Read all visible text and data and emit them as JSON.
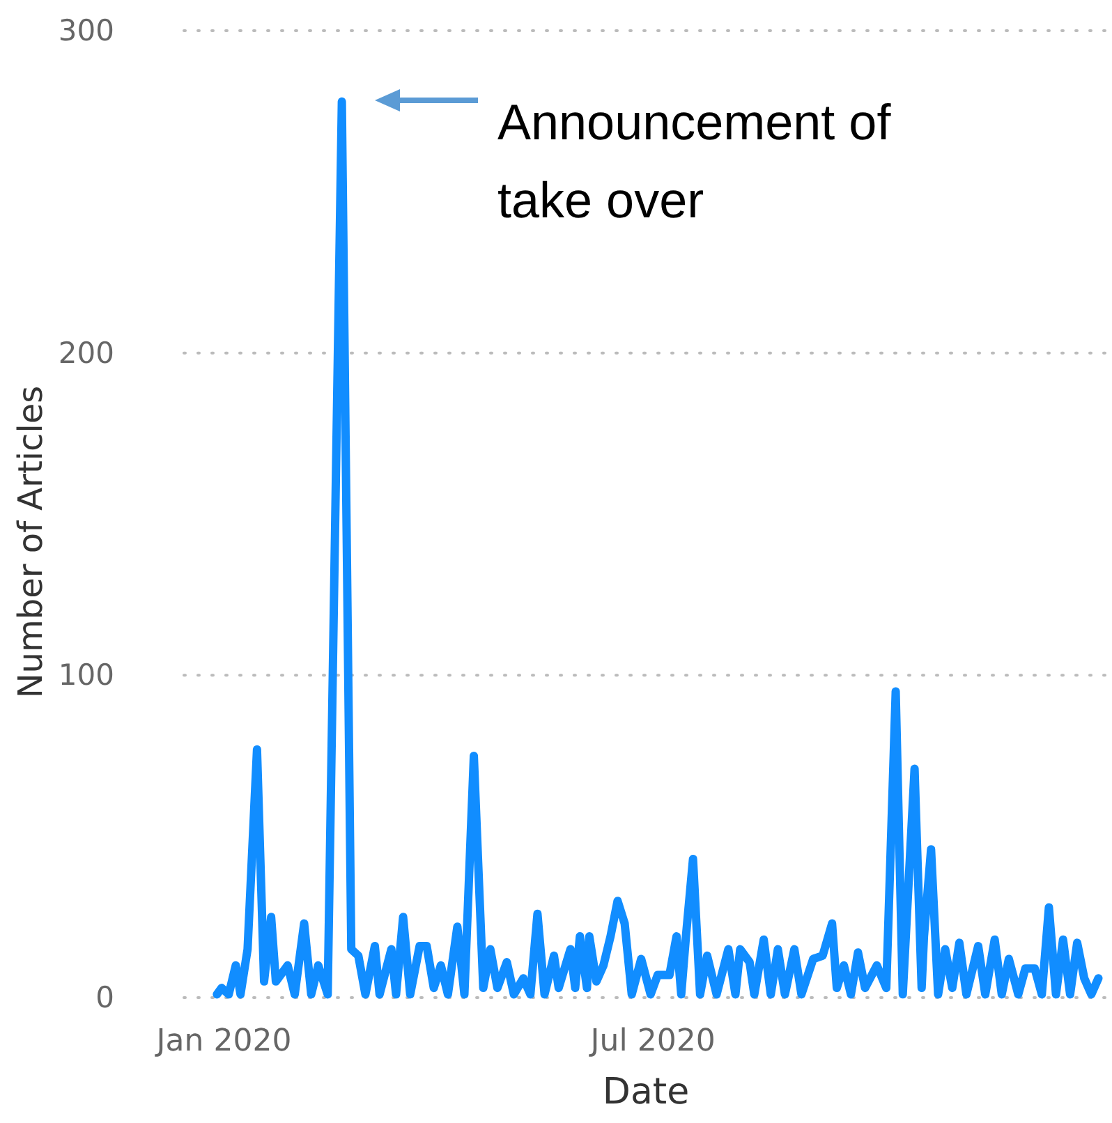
{
  "chart_data": {
    "type": "line",
    "xlabel": "Date",
    "ylabel": "Number of Articles",
    "xlim": [
      "2019-12-15",
      "2021-01-10"
    ],
    "xticks": [
      {
        "value": "2020-01-01",
        "label": "Jan 2020"
      },
      {
        "value": "2020-07-01",
        "label": "Jul 2020"
      }
    ],
    "ylim": [
      0,
      300
    ],
    "yticks": [
      0,
      100,
      200,
      300
    ],
    "grid": "y",
    "line_style": "solid",
    "marker": "none",
    "annotations": [
      "Announcement of take over"
    ],
    "series": [
      {
        "color": "#118dff",
        "x": [
          "2019-12-29",
          "2019-12-31",
          "2020-01-03",
          "2020-01-06",
          "2020-01-08",
          "2020-01-11",
          "2020-01-15",
          "2020-01-18",
          "2020-01-21",
          "2020-01-23",
          "2020-01-28",
          "2020-01-31",
          "2020-02-04",
          "2020-02-07",
          "2020-02-10",
          "2020-02-14",
          "2020-02-20",
          "2020-02-24",
          "2020-02-27",
          "2020-03-01",
          "2020-03-05",
          "2020-03-07",
          "2020-03-12",
          "2020-03-14",
          "2020-03-17",
          "2020-03-20",
          "2020-03-24",
          "2020-03-27",
          "2020-03-30",
          "2020-04-02",
          "2020-04-05",
          "2020-04-09",
          "2020-04-12",
          "2020-04-16",
          "2020-04-20",
          "2020-04-23",
          "2020-04-26",
          "2020-04-30",
          "2020-05-03",
          "2020-05-07",
          "2020-05-10",
          "2020-05-13",
          "2020-05-16",
          "2020-05-20",
          "2020-05-22",
          "2020-05-27",
          "2020-05-29",
          "2020-05-31",
          "2020-06-03",
          "2020-06-04",
          "2020-06-07",
          "2020-06-10",
          "2020-06-13",
          "2020-06-16",
          "2020-06-19",
          "2020-06-22",
          "2020-06-26",
          "2020-06-30",
          "2020-07-03",
          "2020-07-08",
          "2020-07-11",
          "2020-07-13",
          "2020-07-15",
          "2020-07-18",
          "2020-07-21",
          "2020-07-24",
          "2020-07-28",
          "2020-08-02",
          "2020-08-05",
          "2020-08-07",
          "2020-08-11",
          "2020-08-13",
          "2020-08-17",
          "2020-08-20",
          "2020-08-23",
          "2020-08-26",
          "2020-08-30",
          "2020-09-02",
          "2020-09-07",
          "2020-09-11",
          "2020-09-15",
          "2020-09-17",
          "2020-09-20",
          "2020-09-23",
          "2020-09-26",
          "2020-09-29",
          "2020-10-04",
          "2020-10-08",
          "2020-10-12",
          "2020-10-15",
          "2020-10-20",
          "2020-10-23",
          "2020-10-24",
          "2020-10-27",
          "2020-10-30",
          "2020-11-02",
          "2020-11-05",
          "2020-11-08",
          "2020-11-11",
          "2020-11-16",
          "2020-11-19",
          "2020-11-23",
          "2020-11-26",
          "2020-11-29",
          "2020-12-03",
          "2020-12-06",
          "2020-12-10",
          "2020-12-13",
          "2020-12-16",
          "2020-12-19",
          "2020-12-22",
          "2020-12-25",
          "2020-12-28",
          "2020-12-31",
          "2021-01-03",
          "2021-01-06"
        ],
        "values": [
          1,
          3,
          1,
          10,
          1,
          15,
          77,
          5,
          25,
          5,
          10,
          1,
          23,
          1,
          10,
          1,
          278,
          15,
          13,
          1,
          16,
          1,
          15,
          1,
          25,
          1,
          16,
          16,
          3,
          10,
          1,
          22,
          1,
          75,
          3,
          15,
          3,
          11,
          1,
          6,
          1,
          26,
          1,
          13,
          3,
          15,
          3,
          19,
          3,
          19,
          5,
          10,
          19,
          30,
          23,
          1,
          12,
          1,
          7,
          7,
          19,
          1,
          19,
          43,
          1,
          13,
          1,
          15,
          1,
          15,
          11,
          1,
          18,
          1,
          15,
          1,
          15,
          1,
          12,
          13,
          23,
          3,
          10,
          1,
          14,
          3,
          10,
          3,
          95,
          1,
          71,
          3,
          19,
          46,
          1,
          15,
          3,
          17,
          1,
          16,
          1,
          18,
          1,
          12,
          1,
          9,
          9,
          1,
          28,
          1,
          18,
          1,
          17,
          6,
          1,
          6
        ]
      }
    ]
  }
}
